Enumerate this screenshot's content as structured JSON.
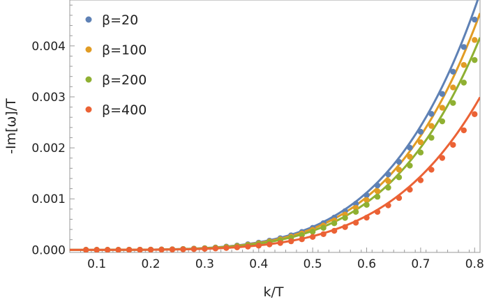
{
  "chart_data": {
    "type": "scatter",
    "title": "",
    "xlabel": "k/T",
    "ylabel": "-Im[ω]/T",
    "xlim": [
      0.05,
      0.81
    ],
    "ylim": [
      -5e-05,
      0.0049
    ],
    "x_ticks": [
      0.1,
      0.2,
      0.3,
      0.4,
      0.5,
      0.6,
      0.7,
      0.8
    ],
    "x_tick_labels": [
      "0.1",
      "0.2",
      "0.3",
      "0.4",
      "0.5",
      "0.6",
      "0.7",
      "0.8"
    ],
    "y_ticks": [
      0.0,
      0.001,
      0.002,
      0.003,
      0.004
    ],
    "y_tick_labels": [
      "0.000",
      "0.001",
      "0.002",
      "0.003",
      "0.004"
    ],
    "legend_position": "top-left",
    "grid": false,
    "fit_exponent": 5,
    "series": [
      {
        "name": "β=20",
        "color": "#5e81b5",
        "fit_coefficient": 0.01443,
        "point_coefficient": 0.01378
      },
      {
        "name": "β=100",
        "color": "#e19c24",
        "fit_coefficient": 0.01331,
        "point_coefficient": 0.01256
      },
      {
        "name": "β=200",
        "color": "#8fb032",
        "fit_coefficient": 0.01194,
        "point_coefficient": 0.01136
      },
      {
        "name": "β=400",
        "color": "#eb6235",
        "fit_coefficient": 0.00858,
        "point_coefficient": 0.00812
      }
    ],
    "points_x": [
      0.08,
      0.1,
      0.12,
      0.14,
      0.16,
      0.18,
      0.2,
      0.22,
      0.24,
      0.26,
      0.28,
      0.3,
      0.32,
      0.34,
      0.36,
      0.38,
      0.4,
      0.42,
      0.44,
      0.46,
      0.48,
      0.5,
      0.52,
      0.54,
      0.56,
      0.58,
      0.6,
      0.62,
      0.64,
      0.66,
      0.68,
      0.7,
      0.72,
      0.74,
      0.76,
      0.78,
      0.8
    ]
  }
}
